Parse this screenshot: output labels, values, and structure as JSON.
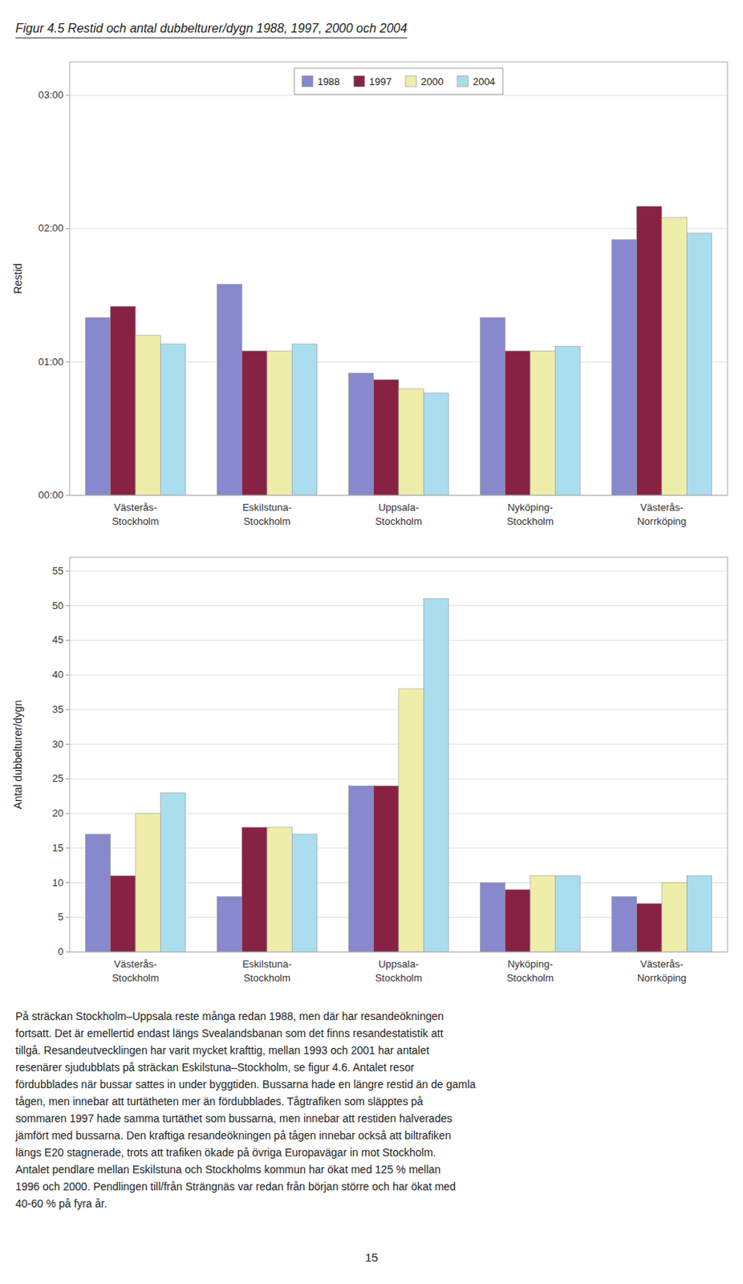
{
  "title": "Figur 4.5 Restid och antal dubbelturer/dygn 1988, 1997, 2000 och 2004",
  "annotations": [
    "På sträckan Stockholm–Uppsala reste många redan 1988, men där har resandeökningen\nfortsatt. Det är emellertid endast längs Svealandsbanan som det finns resandestatistik att\ntillgå. Resandeutvecklingen har varit mycket krafttig, mellan 1993 och 2001 har antalet\nresenärer sjudubblats på sträckan Eskilstuna–Stockholm, se figur 4.6. Antalet resor\nfördubblades när bussar sattes in under byggtiden. Bussarna hade en längre restid än de gamla\ntågen, men innebar att turtätheten mer än fördubblades. Tågtrafiken som släpptes på\nsommaren 1997 hade samma turtäthet som bussarna, men innebar att restiden halverades\njämfört med bussarna. Den kraftiga resandeökningen på tågen innebar också att biltrafiken\nlängs E20 stagnerade, trots att trafiken ökade på övriga Europavägar in mot Stockholm.\nAntalet pendlare mellan Eskilstuna och Stockholms kommun har ökat med 125 % mellan\n1996 och 2000. Pendlingen till/från Strängnäs var redan från början större och har ökat med\n40-60 % på fyra år.",
    "15"
  ],
  "chart_data": [
    {
      "type": "bar",
      "y_label": "Restid",
      "categories": [
        "Västerås-\nStockholm",
        "Eskilstuna-\nStockholm",
        "Uppsala-\nStockholm",
        "Nyköping-\nStockholm",
        "Västerås-\nNorrköping"
      ],
      "series": [
        {
          "name": "1988",
          "color": "#8888cc",
          "values": [
            80,
            95,
            55,
            80,
            115
          ]
        },
        {
          "name": "1997",
          "color": "#882244",
          "values": [
            85,
            65,
            52,
            65,
            130
          ]
        },
        {
          "name": "2000",
          "color": "#eeeeaa",
          "values": [
            72,
            65,
            48,
            65,
            125
          ]
        },
        {
          "name": "2004",
          "color": "#aaddee",
          "values": [
            68,
            68,
            46,
            67,
            118
          ]
        }
      ],
      "ylim": [
        0,
        195
      ],
      "yticks": [
        {
          "value": 0,
          "label": "00:00"
        },
        {
          "value": 60,
          "label": "01:00"
        },
        {
          "value": 120,
          "label": "02:00"
        },
        {
          "value": 180,
          "label": "03:00"
        }
      ],
      "grid": true,
      "legend": "top"
    },
    {
      "type": "bar",
      "y_label": "Antal dubbelturer/dygn",
      "categories": [
        "Västerås-\nStockholm",
        "Eskilstuna-\nStockholm",
        "Uppsala-\nStockholm",
        "Nyköping-\nStockholm",
        "Västerås-\nNorrköping"
      ],
      "series": [
        {
          "name": "1988",
          "color": "#8888cc",
          "values": [
            17,
            8,
            24,
            10,
            8
          ]
        },
        {
          "name": "1997",
          "color": "#882244",
          "values": [
            11,
            18,
            24,
            9,
            7
          ]
        },
        {
          "name": "2000",
          "color": "#eeeeaa",
          "values": [
            20,
            18,
            38,
            11,
            10
          ]
        },
        {
          "name": "2004",
          "color": "#aaddee",
          "values": [
            23,
            17,
            51,
            11,
            11
          ]
        }
      ],
      "ylim": [
        0,
        57
      ],
      "yticks": [
        0,
        5,
        10,
        15,
        20,
        25,
        30,
        35,
        40,
        45,
        50,
        55
      ],
      "grid": true
    }
  ]
}
